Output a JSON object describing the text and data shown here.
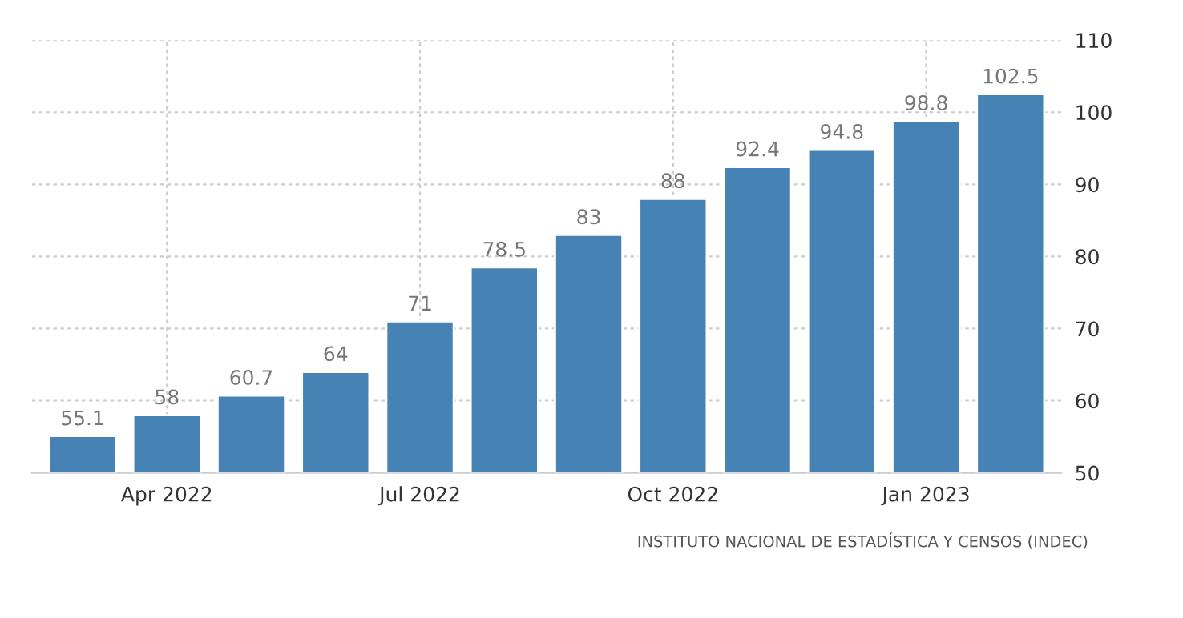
{
  "chart_data": {
    "type": "bar",
    "categories": [
      null,
      "Apr 2022",
      null,
      null,
      "Jul 2022",
      null,
      null,
      "Oct 2022",
      null,
      null,
      "Jan 2023",
      null
    ],
    "values": [
      55.1,
      58,
      60.7,
      64,
      71,
      78.5,
      83,
      88,
      92.4,
      94.8,
      98.8,
      102.5
    ],
    "color": "#4682b4",
    "ylim": [
      50,
      110
    ],
    "yticks": [
      50,
      60,
      70,
      80,
      90,
      100,
      110
    ],
    "grid": true,
    "data_labels": true,
    "annotations": [
      "INSTITUTO NACIONAL DE ESTADÍSTICA Y CENSOS (INDEC)"
    ]
  }
}
